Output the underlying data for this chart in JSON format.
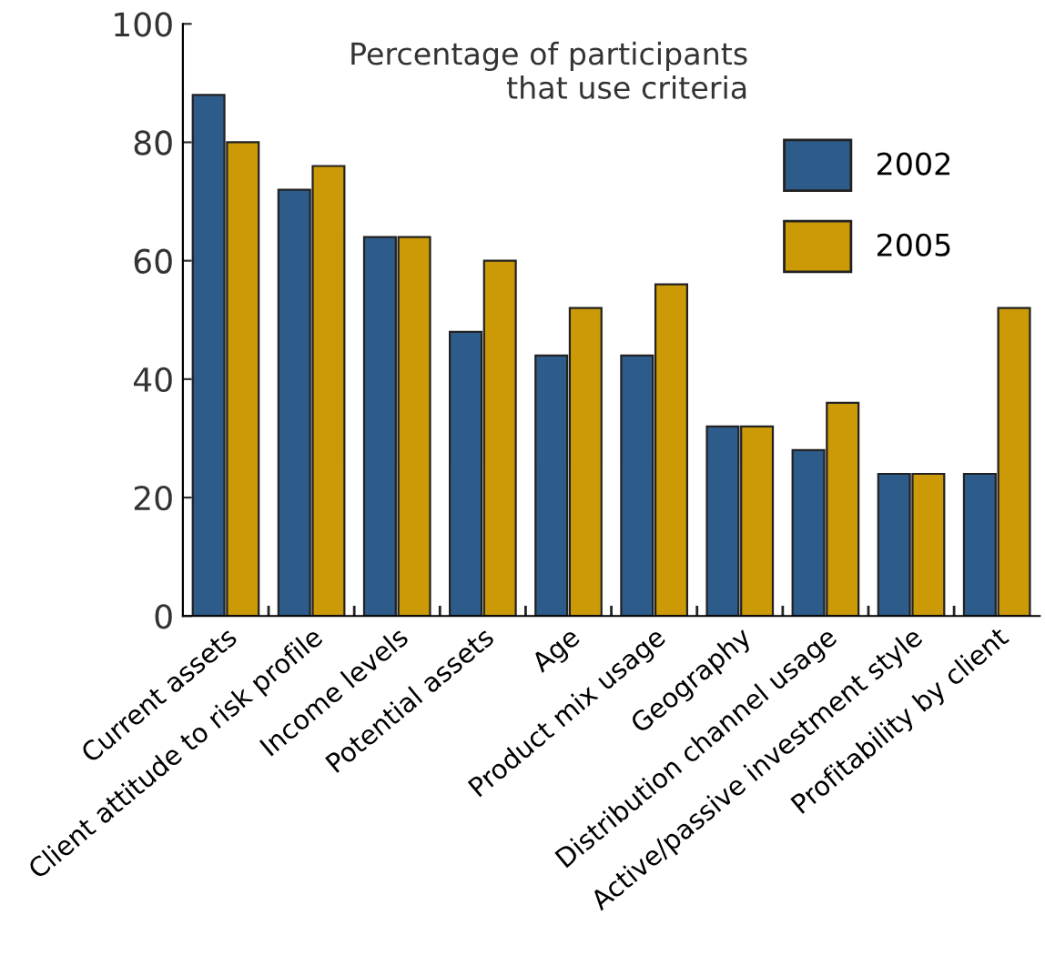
{
  "chart_data": {
    "type": "bar",
    "title": "Percentage of participants\nthat use criteria",
    "categories": [
      "Current assets",
      "Client attitude to risk profile",
      "Income levels",
      "Potential assets",
      "Age",
      "Product mix usage",
      "Geography",
      "Distribution channel usage",
      "Active/passive investment style",
      "Profitability by client"
    ],
    "series": [
      {
        "name": "2002",
        "color": "#2d5b8a",
        "values": [
          88,
          72,
          64,
          48,
          44,
          44,
          32,
          28,
          24,
          24
        ]
      },
      {
        "name": "2005",
        "color": "#cc9a06",
        "values": [
          80,
          76,
          64,
          60,
          52,
          56,
          32,
          36,
          24,
          52
        ]
      }
    ],
    "ylim": [
      0,
      100
    ],
    "yticks": [
      0,
      20,
      40,
      60,
      80,
      100
    ],
    "grid": false,
    "legend": "top right"
  }
}
